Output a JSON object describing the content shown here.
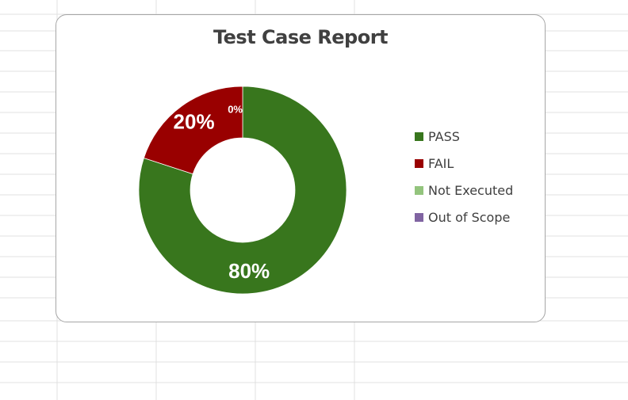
{
  "chart_data": {
    "type": "pie",
    "subtype": "donut",
    "title": "Test Case Report",
    "categories": [
      "PASS",
      "FAIL",
      "Not Executed",
      "Out of Scope"
    ],
    "values": [
      80,
      20,
      0,
      0
    ],
    "data_labels": [
      "80%",
      "20%",
      "0%",
      ""
    ],
    "colors": [
      "#38761d",
      "#990000",
      "#93c47d",
      "#8064a2"
    ],
    "legend_position": "right"
  }
}
